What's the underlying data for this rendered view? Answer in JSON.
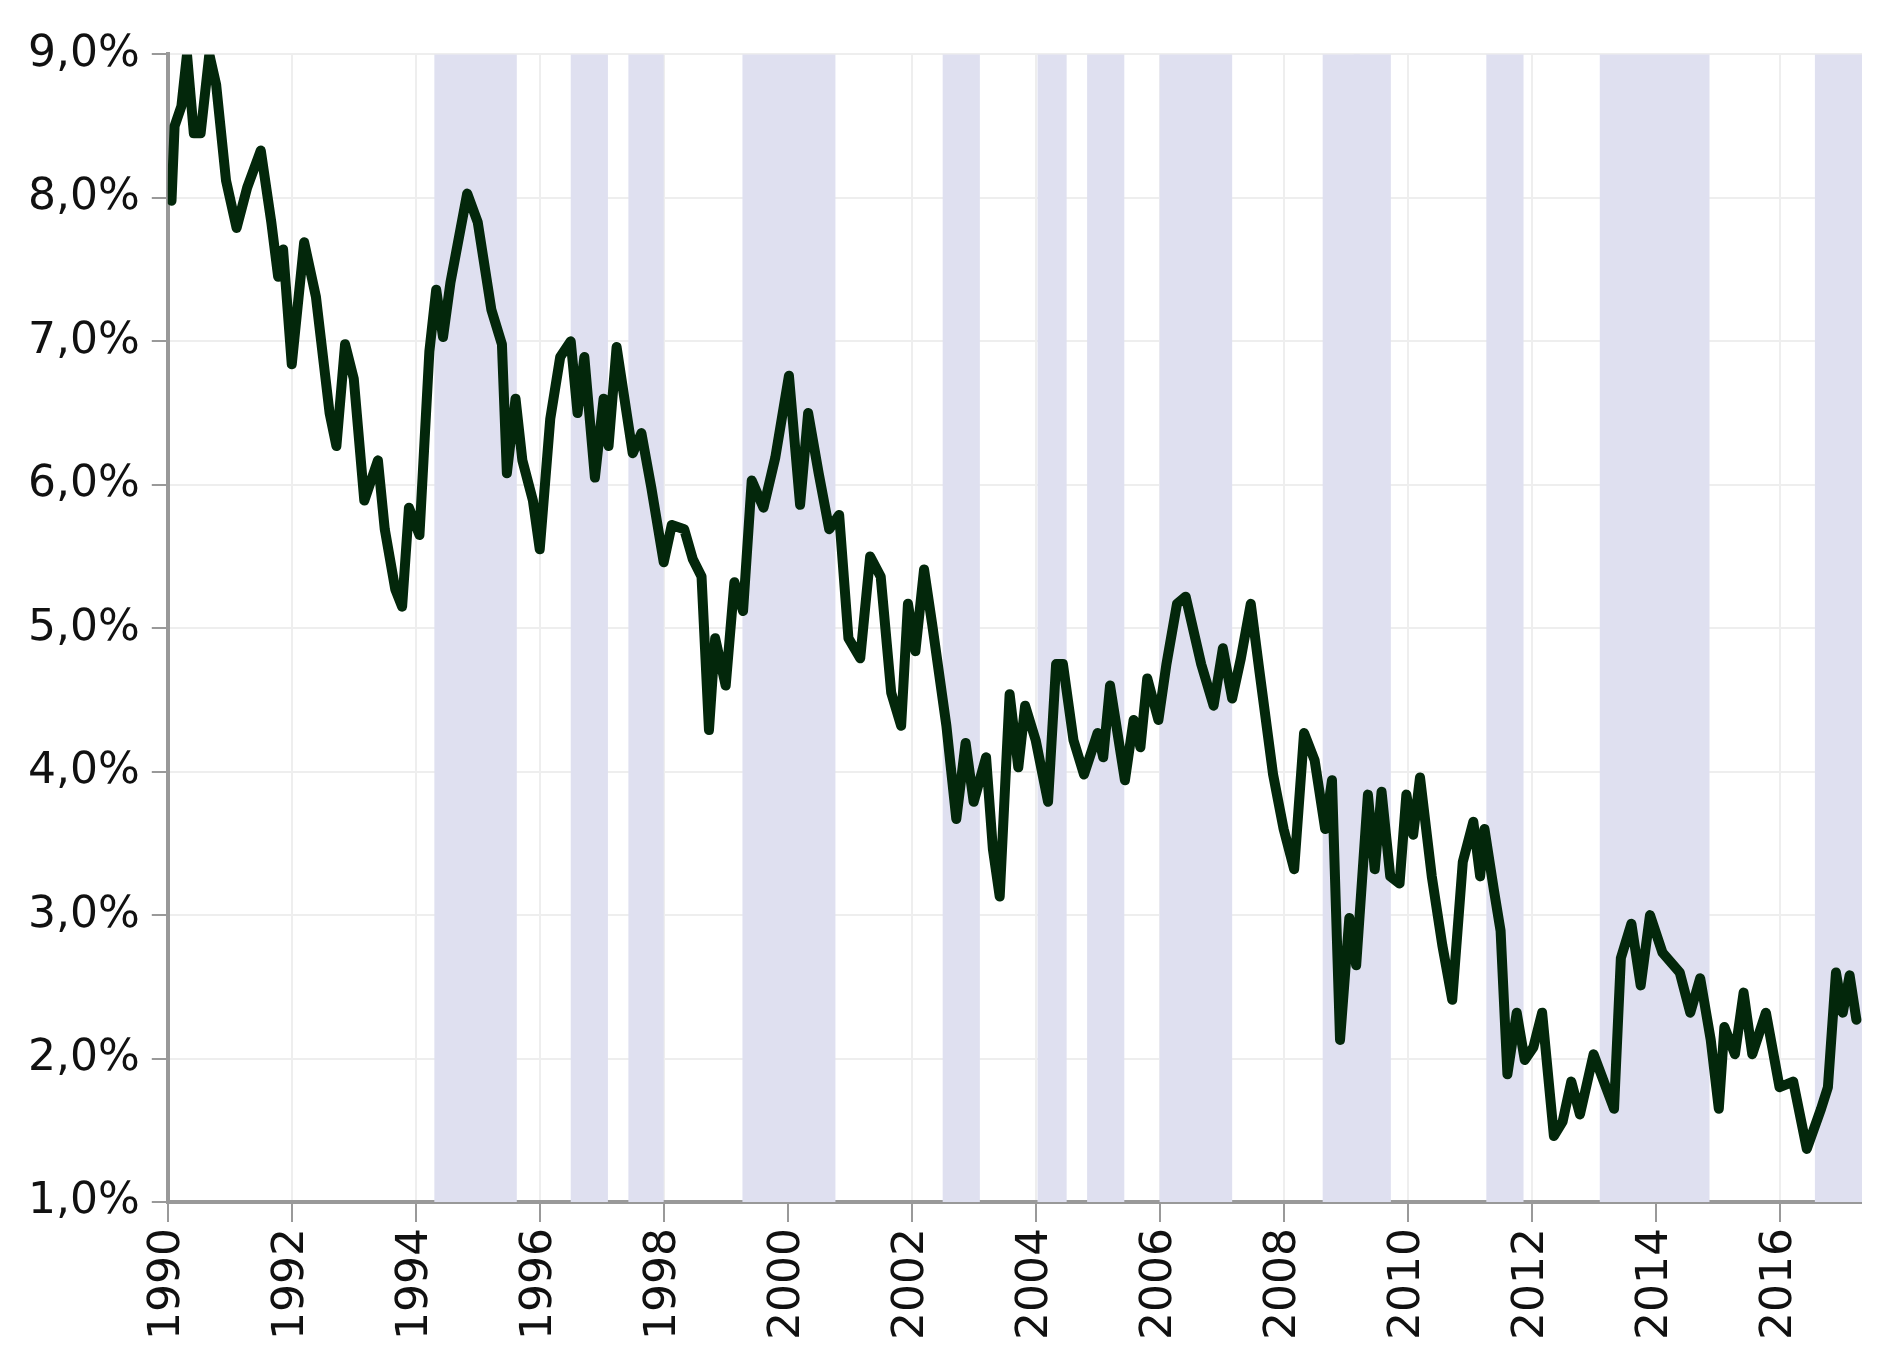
{
  "chart_data": {
    "type": "line",
    "xlim": [
      1990,
      2017.33
    ],
    "xticks": [
      1990,
      1992,
      1994,
      1996,
      1998,
      2000,
      2002,
      2004,
      2006,
      2008,
      2010,
      2012,
      2014,
      2016
    ],
    "ylim": [
      1,
      9
    ],
    "yticks": [
      {
        "value": 1,
        "label": "1,0%"
      },
      {
        "value": 2,
        "label": "2,0%"
      },
      {
        "value": 3,
        "label": "3,0%"
      },
      {
        "value": 4,
        "label": "4,0%"
      },
      {
        "value": 5,
        "label": "5,0%"
      },
      {
        "value": 6,
        "label": "6,0%"
      },
      {
        "value": 7,
        "label": "7,0%"
      },
      {
        "value": 8,
        "label": "8,0%"
      },
      {
        "value": 9,
        "label": "9,0%"
      }
    ],
    "grid": true,
    "marker": "none",
    "line_style": "solid",
    "bands": [
      {
        "axis": "x",
        "from": 1994.3,
        "to": 1995.63,
        "color": "#dfe0f0"
      },
      {
        "axis": "x",
        "from": 1996.5,
        "to": 1997.1,
        "color": "#dfe0f0"
      },
      {
        "axis": "x",
        "from": 1997.43,
        "to": 1998.0,
        "color": "#dfe0f0"
      },
      {
        "axis": "x",
        "from": 1999.27,
        "to": 2000.77,
        "color": "#dfe0f0"
      },
      {
        "axis": "x",
        "from": 2002.5,
        "to": 2003.1,
        "color": "#dfe0f0"
      },
      {
        "axis": "x",
        "from": 2004.03,
        "to": 2004.5,
        "color": "#dfe0f0"
      },
      {
        "axis": "x",
        "from": 2004.83,
        "to": 2005.43,
        "color": "#dfe0f0"
      },
      {
        "axis": "x",
        "from": 2006.0,
        "to": 2007.17,
        "color": "#dfe0f0"
      },
      {
        "axis": "x",
        "from": 2008.63,
        "to": 2009.23,
        "color": "#dfe0f0"
      },
      {
        "axis": "x",
        "from": 2009.13,
        "to": 2009.73,
        "color": "#dfe0f0"
      },
      {
        "axis": "x",
        "from": 2011.27,
        "to": 2011.87,
        "color": "#dfe0f0"
      },
      {
        "axis": "x",
        "from": 2013.1,
        "to": 2014.87,
        "color": "#dfe0f0"
      },
      {
        "axis": "x",
        "from": 2016.57,
        "to": 2017.33,
        "color": "#dfe0f0"
      }
    ],
    "series": [
      {
        "color": "#03270b",
        "x": [
          1990.06,
          1990.11,
          1990.22,
          1990.31,
          1990.42,
          1990.53,
          1990.67,
          1990.78,
          1990.94,
          1991.11,
          1991.28,
          1991.5,
          1991.67,
          1991.78,
          1991.86,
          1992.0,
          1992.2,
          1992.39,
          1992.61,
          1992.72,
          1992.86,
          1993.0,
          1993.17,
          1993.39,
          1993.5,
          1993.67,
          1993.78,
          1993.89,
          1994.06,
          1994.22,
          1994.33,
          1994.44,
          1994.56,
          1994.83,
          1995.0,
          1995.22,
          1995.39,
          1995.47,
          1995.61,
          1995.72,
          1995.89,
          1996.0,
          1996.17,
          1996.33,
          1996.5,
          1996.61,
          1996.72,
          1996.89,
          1997.03,
          1997.11,
          1997.24,
          1997.5,
          1997.64,
          1997.8,
          1998.0,
          1998.13,
          1998.33,
          1998.47,
          1998.61,
          1998.73,
          1998.83,
          1999.0,
          1999.14,
          1999.28,
          1999.42,
          1999.61,
          1999.8,
          2000.02,
          2000.2,
          2000.33,
          2000.5,
          2000.67,
          2000.83,
          2000.98,
          2001.17,
          2001.33,
          2001.5,
          2001.67,
          2001.83,
          2001.94,
          2002.06,
          2002.2,
          2002.33,
          2002.56,
          2002.72,
          2002.87,
          2003.0,
          2003.2,
          2003.31,
          2003.42,
          2003.58,
          2003.72,
          2003.83,
          2004.0,
          2004.2,
          2004.33,
          2004.44,
          2004.61,
          2004.78,
          2005.0,
          2005.09,
          2005.2,
          2005.44,
          2005.58,
          2005.69,
          2005.8,
          2005.98,
          2006.11,
          2006.28,
          2006.42,
          2006.67,
          2006.87,
          2007.02,
          2007.17,
          2007.31,
          2007.47,
          2007.61,
          2007.83,
          2008.0,
          2008.17,
          2008.33,
          2008.5,
          2008.67,
          2008.78,
          2008.91,
          2009.06,
          2009.17,
          2009.36,
          2009.47,
          2009.58,
          2009.72,
          2009.87,
          2009.98,
          2010.09,
          2010.2,
          2010.39,
          2010.56,
          2010.72,
          2010.89,
          2011.06,
          2011.17,
          2011.24,
          2011.39,
          2011.5,
          2011.61,
          2011.76,
          2011.89,
          2012.03,
          2012.17,
          2012.36,
          2012.5,
          2012.64,
          2012.78,
          2013.0,
          2013.33,
          2013.44,
          2013.61,
          2013.76,
          2013.91,
          2014.11,
          2014.39,
          2014.56,
          2014.72,
          2014.89,
          2015.02,
          2015.11,
          2015.28,
          2015.42,
          2015.56,
          2015.78,
          2016.0,
          2016.22,
          2016.44,
          2016.67,
          2016.78,
          2016.91,
          2017.02,
          2017.13,
          2017.24
        ],
        "values": [
          7.98,
          8.5,
          8.64,
          9.0,
          8.45,
          8.45,
          9.0,
          8.79,
          8.12,
          7.79,
          8.07,
          8.33,
          7.83,
          7.45,
          7.64,
          6.84,
          7.69,
          7.31,
          6.5,
          6.27,
          6.98,
          6.74,
          5.89,
          6.17,
          5.69,
          5.27,
          5.15,
          5.84,
          5.65,
          6.93,
          7.36,
          7.03,
          7.41,
          8.03,
          7.83,
          7.22,
          6.98,
          6.08,
          6.6,
          6.17,
          5.89,
          5.55,
          6.46,
          6.89,
          7.0,
          6.5,
          6.89,
          6.05,
          6.6,
          6.27,
          6.96,
          6.22,
          6.36,
          5.98,
          5.46,
          5.72,
          5.69,
          5.48,
          5.36,
          4.29,
          4.93,
          4.6,
          5.32,
          5.12,
          6.03,
          5.84,
          6.19,
          6.76,
          5.86,
          6.5,
          6.08,
          5.69,
          5.79,
          4.93,
          4.79,
          5.5,
          5.36,
          4.55,
          4.32,
          5.17,
          4.84,
          5.41,
          5.03,
          4.32,
          3.67,
          4.2,
          3.79,
          4.1,
          3.46,
          3.13,
          4.54,
          4.03,
          4.46,
          4.22,
          3.79,
          4.75,
          4.75,
          4.22,
          3.98,
          4.27,
          4.1,
          4.6,
          3.94,
          4.36,
          4.17,
          4.65,
          4.36,
          4.75,
          5.17,
          5.22,
          4.75,
          4.46,
          4.86,
          4.51,
          4.79,
          5.17,
          4.7,
          3.98,
          3.6,
          3.32,
          4.27,
          4.08,
          3.6,
          3.94,
          2.13,
          2.98,
          2.65,
          3.84,
          3.32,
          3.86,
          3.27,
          3.22,
          3.84,
          3.56,
          3.96,
          3.27,
          2.79,
          2.41,
          3.37,
          3.65,
          3.27,
          3.6,
          3.18,
          2.89,
          1.89,
          2.32,
          1.99,
          2.08,
          2.32,
          1.46,
          1.56,
          1.84,
          1.61,
          2.03,
          1.65,
          2.7,
          2.94,
          2.51,
          3.0,
          2.74,
          2.6,
          2.32,
          2.56,
          2.13,
          1.65,
          2.22,
          2.03,
          2.46,
          2.03,
          2.32,
          1.8,
          1.84,
          1.37,
          1.65,
          1.8,
          2.6,
          2.32,
          2.58,
          2.27
        ]
      }
    ]
  }
}
